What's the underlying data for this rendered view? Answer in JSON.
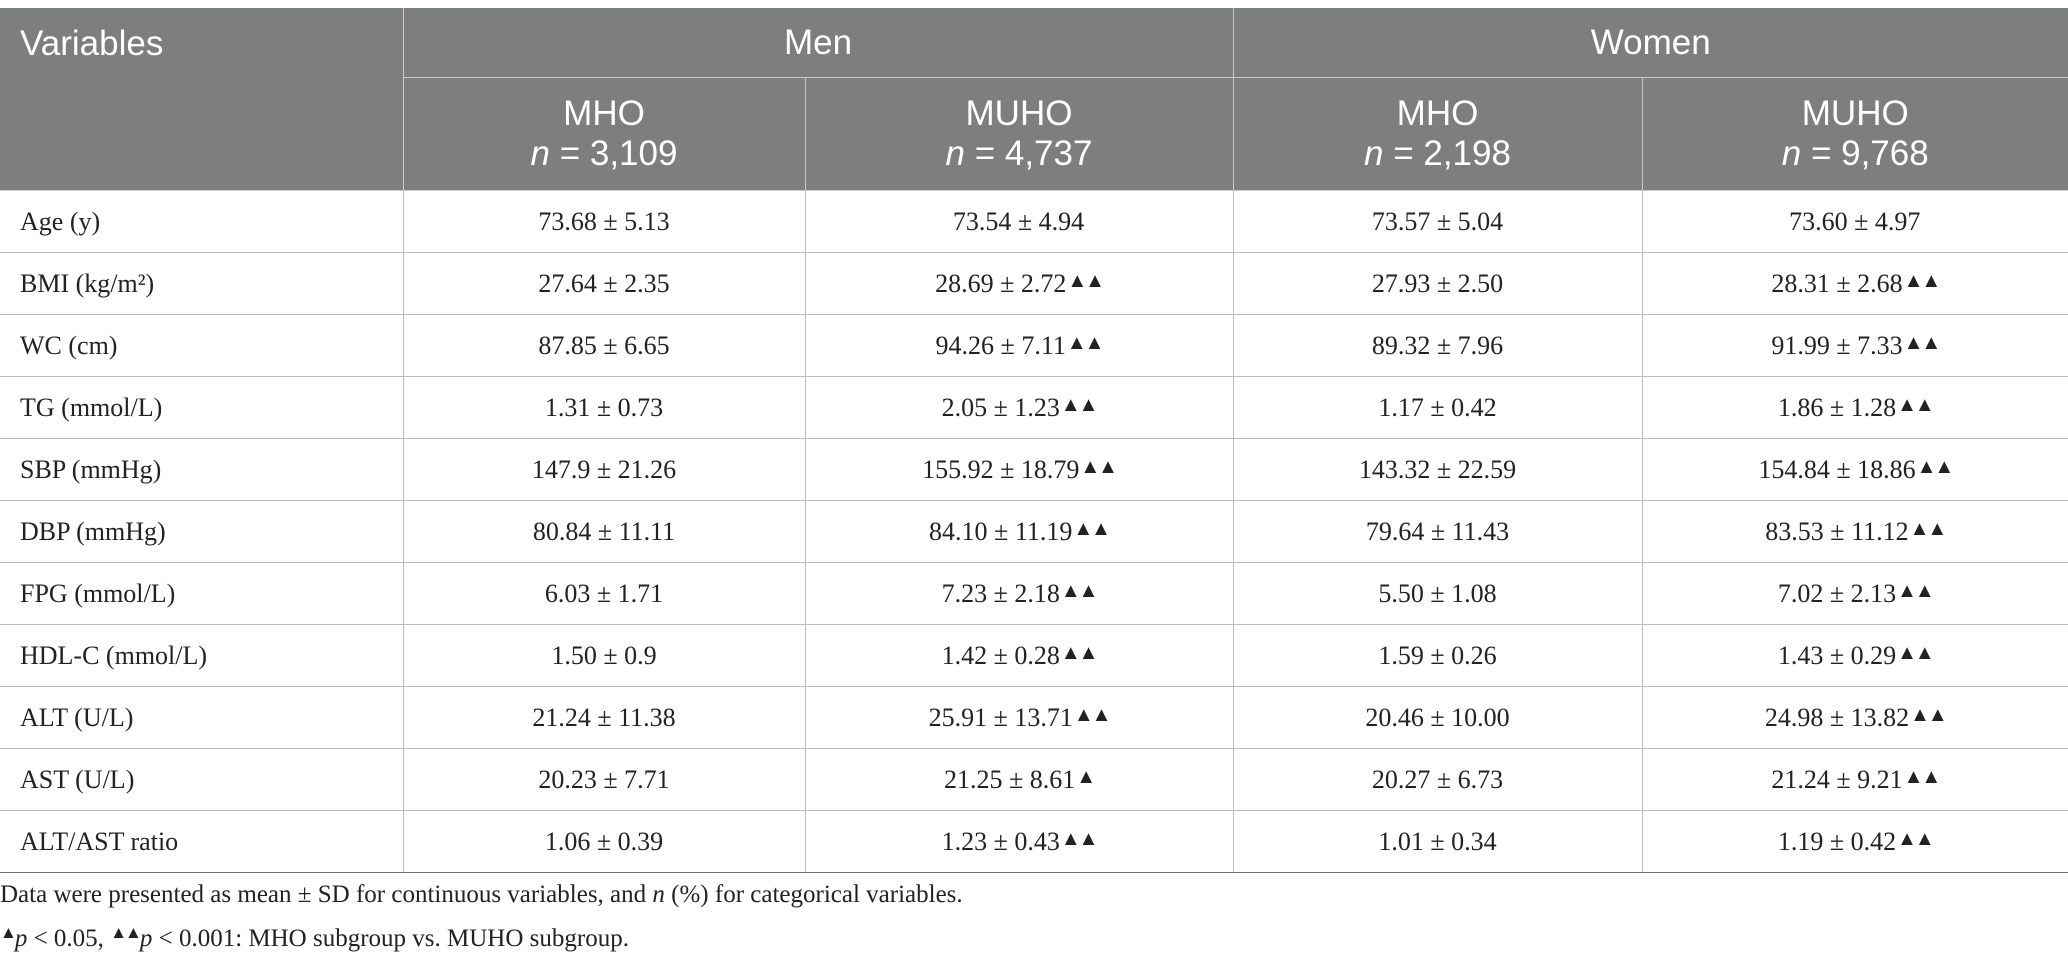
{
  "table": {
    "headers": {
      "variables": "Variables",
      "men": "Men",
      "women": "Women",
      "men_mho": {
        "label": "MHO",
        "n_label": "n",
        "n_value": " = 3,109"
      },
      "men_muho": {
        "label": "MUHO",
        "n_label": "n",
        "n_value": " = 4,737"
      },
      "women_mho": {
        "label": "MHO",
        "n_label": "n",
        "n_value": " = 2,198"
      },
      "women_muho": {
        "label": "MUHO",
        "n_label": "n",
        "n_value": " = 9,768"
      }
    },
    "rows": [
      {
        "name": "Age (y)",
        "men_mho": "73.68 ± 5.13",
        "men_muho": "73.54 ± 4.94",
        "men_muho_sig": "",
        "women_mho": "73.57 ± 5.04",
        "women_muho": "73.60 ± 4.97",
        "women_muho_sig": ""
      },
      {
        "name": "BMI (kg/m²)",
        "men_mho": "27.64 ± 2.35",
        "men_muho": "28.69 ± 2.72",
        "men_muho_sig": "▲▲",
        "women_mho": "27.93 ± 2.50",
        "women_muho": "28.31 ± 2.68",
        "women_muho_sig": "▲▲"
      },
      {
        "name": "WC (cm)",
        "men_mho": "87.85 ± 6.65",
        "men_muho": "94.26 ± 7.11",
        "men_muho_sig": "▲▲",
        "women_mho": "89.32 ± 7.96",
        "women_muho": "91.99 ± 7.33",
        "women_muho_sig": "▲▲"
      },
      {
        "name": "TG (mmol/L)",
        "men_mho": "1.31 ± 0.73",
        "men_muho": "2.05 ± 1.23",
        "men_muho_sig": "▲▲",
        "women_mho": "1.17 ± 0.42",
        "women_muho": "1.86 ± 1.28",
        "women_muho_sig": "▲▲"
      },
      {
        "name": "SBP (mmHg)",
        "men_mho": "147.9 ± 21.26",
        "men_muho": "155.92 ± 18.79",
        "men_muho_sig": "▲▲",
        "women_mho": "143.32 ± 22.59",
        "women_muho": "154.84 ± 18.86",
        "women_muho_sig": "▲▲"
      },
      {
        "name": "DBP (mmHg)",
        "men_mho": "80.84 ± 11.11",
        "men_muho": "84.10 ± 11.19",
        "men_muho_sig": "▲▲",
        "women_mho": "79.64 ± 11.43",
        "women_muho": "83.53 ± 11.12",
        "women_muho_sig": "▲▲"
      },
      {
        "name": "FPG (mmol/L)",
        "men_mho": "6.03 ± 1.71",
        "men_muho": "7.23 ± 2.18",
        "men_muho_sig": "▲▲",
        "women_mho": "5.50 ± 1.08",
        "women_muho": "7.02 ± 2.13",
        "women_muho_sig": "▲▲"
      },
      {
        "name": "HDL-C (mmol/L)",
        "men_mho": "1.50 ± 0.9",
        "men_muho": "1.42 ± 0.28",
        "men_muho_sig": "▲▲",
        "women_mho": "1.59 ± 0.26",
        "women_muho": "1.43 ± 0.29",
        "women_muho_sig": "▲▲"
      },
      {
        "name": "ALT (U/L)",
        "men_mho": "21.24 ± 11.38",
        "men_muho": "25.91 ± 13.71",
        "men_muho_sig": "▲▲",
        "women_mho": "20.46 ± 10.00",
        "women_muho": "24.98 ± 13.82",
        "women_muho_sig": "▲▲"
      },
      {
        "name": "AST (U/L)",
        "men_mho": "20.23 ± 7.71",
        "men_muho": "21.25 ± 8.61",
        "men_muho_sig": "▲",
        "women_mho": "20.27 ± 6.73",
        "women_muho": "21.24 ± 9.21",
        "women_muho_sig": "▲▲"
      },
      {
        "name": "ALT/AST ratio",
        "men_mho": "1.06 ± 0.39",
        "men_muho": "1.23 ± 0.43",
        "men_muho_sig": "▲▲",
        "women_mho": "1.01 ± 0.34",
        "women_muho": "1.19 ± 0.42",
        "women_muho_sig": "▲▲"
      }
    ]
  },
  "footnotes": {
    "line1_a": "Data were presented as mean ± SD for continuous variables, and ",
    "line1_n": "n",
    "line1_b": " (%) for categorical variables.",
    "line2_tri1": "▲",
    "line2_p1": "p",
    "line2_a": " < 0.05, ",
    "line2_tri2": "▲▲",
    "line2_p2": "p",
    "line2_b": " < 0.001: MHO subgroup vs. MUHO subgroup."
  },
  "colors": {
    "header_bg": "#7d7e7e",
    "header_text": "#ffffff",
    "body_text": "#222222",
    "grid": "#bcbcbc"
  }
}
